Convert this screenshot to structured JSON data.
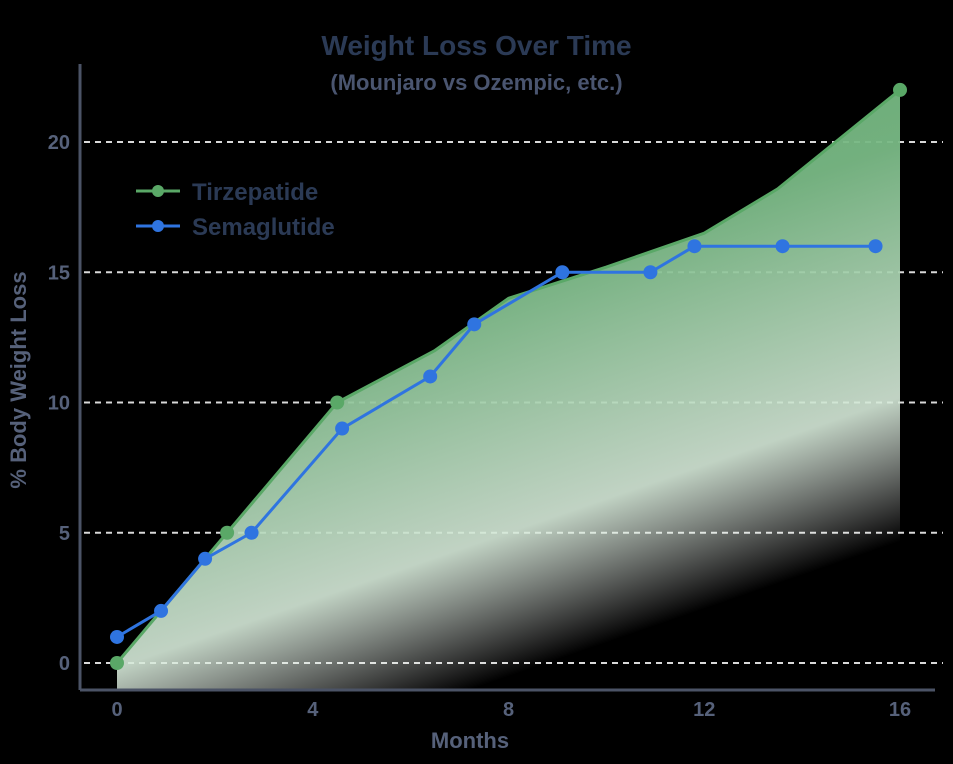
{
  "chart_data": {
    "type": "line",
    "title": "Weight Loss Over Time",
    "subtitle": "(Mounjaro vs Ozempic, etc.)",
    "xlabel": "Months",
    "ylabel": "% Body Weight Loss",
    "xlim": [
      0,
      16
    ],
    "ylim": [
      0,
      22
    ],
    "x_ticks": [
      0,
      4,
      8,
      12,
      16
    ],
    "y_ticks": [
      0,
      5,
      10,
      15,
      20
    ],
    "grid": "horizontal dashed",
    "legend_position": "upper left",
    "series": [
      {
        "name": "Tirzepatide",
        "color": "#5aa867",
        "fill": "area gradient",
        "x": [
          0,
          2.25,
          4.5,
          6.5,
          8,
          10,
          12,
          13.5,
          16
        ],
        "y": [
          0,
          5,
          10,
          12,
          14,
          15.2,
          16.5,
          18.2,
          22
        ]
      },
      {
        "name": "Semaglutide",
        "color": "#2f74e0",
        "x": [
          0,
          0.9,
          1.8,
          2.75,
          4.6,
          6.4,
          7.3,
          9.1,
          10.9,
          11.8,
          13.6,
          15.5
        ],
        "y": [
          1,
          2,
          4,
          5,
          9,
          11,
          13,
          15,
          15,
          16,
          16,
          16
        ]
      }
    ]
  },
  "labels": {
    "title": "Weight Loss Over Time",
    "subtitle": "(Mounjaro vs Ozempic, etc.)",
    "xlabel": "Months",
    "ylabel": "% Body Weight Loss",
    "legend": [
      "Tirzepatide",
      "Semaglutide"
    ],
    "x_ticks": [
      "0",
      "4",
      "8",
      "12",
      "16"
    ],
    "y_ticks": [
      "0",
      "5",
      "10",
      "15",
      "20"
    ]
  }
}
